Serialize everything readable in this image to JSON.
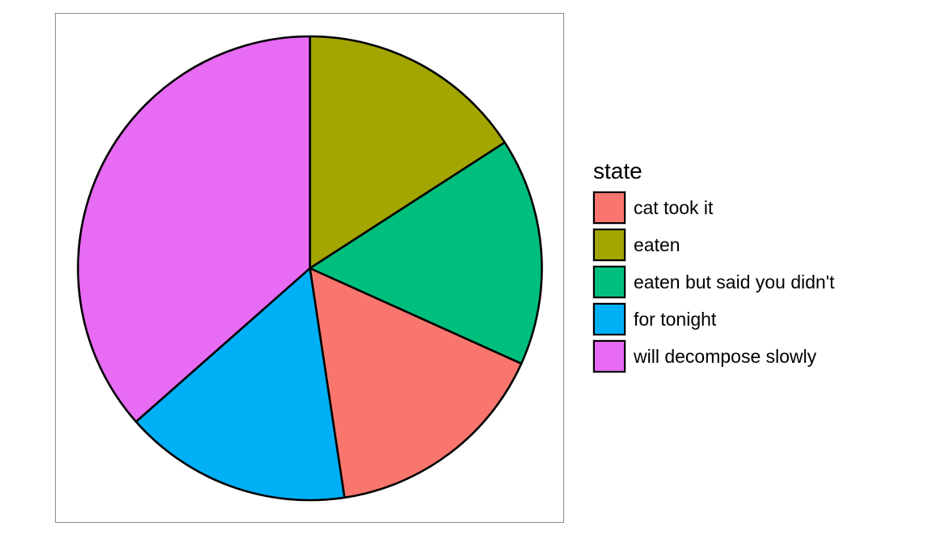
{
  "chart_data": {
    "type": "pie",
    "title": "",
    "legend_title": "state",
    "legend_position": "right",
    "slices": [
      {
        "label": "eaten",
        "value": 1,
        "color": "#A3A500"
      },
      {
        "label": "eaten but said you didn't",
        "value": 1,
        "color": "#00BF7D"
      },
      {
        "label": "cat took it",
        "value": 1,
        "color": "#F8766D"
      },
      {
        "label": "for tonight",
        "value": 1,
        "color": "#00B0F6"
      },
      {
        "label": "will decompose slowly",
        "value": 2.3,
        "color": "#E76BF3"
      }
    ],
    "legend_items": [
      {
        "label": "cat took it",
        "color": "#F8766D"
      },
      {
        "label": "eaten",
        "color": "#A3A500"
      },
      {
        "label": "eaten but said you didn't",
        "color": "#00BF7D"
      },
      {
        "label": "for tonight",
        "color": "#00B0F6"
      },
      {
        "label": "will decompose slowly",
        "color": "#E76BF3"
      }
    ]
  }
}
